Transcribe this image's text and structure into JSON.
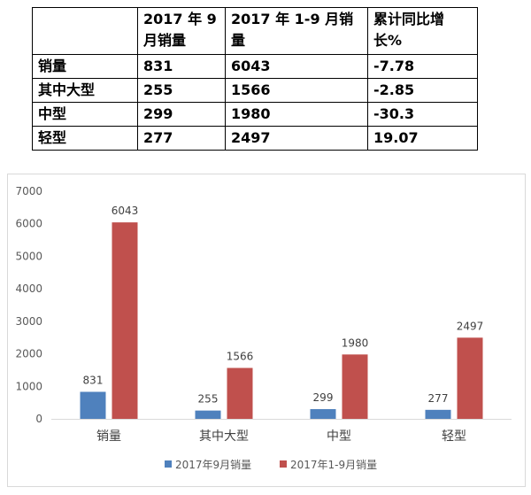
{
  "table": {
    "header": [
      "",
      "2017 年 9 月销量",
      "2017 年 1-9 月销量",
      "累计同比增长%"
    ],
    "rows": [
      [
        "销量",
        "831",
        "6043",
        "-7.78"
      ],
      [
        "其中大型",
        "255",
        "1566",
        "-2.85"
      ],
      [
        "中型",
        "299",
        "1980",
        "-30.3"
      ],
      [
        "轻型",
        "277",
        "2497",
        "19.07"
      ]
    ]
  },
  "chart_data": {
    "type": "bar",
    "categories": [
      "销量",
      "其中大型",
      "中型",
      "轻型"
    ],
    "series": [
      {
        "name": "2017年9月销量",
        "values": [
          831,
          255,
          299,
          277
        ],
        "color": "#4f81bd"
      },
      {
        "name": "2017年1-9月销量",
        "values": [
          6043,
          1566,
          1980,
          2497
        ],
        "color": "#c0504d"
      }
    ],
    "ylim": [
      0,
      7000
    ],
    "yticks": [
      0,
      1000,
      2000,
      3000,
      4000,
      5000,
      6000,
      7000
    ],
    "grid": false,
    "legend": "bottom",
    "data_labels": true
  }
}
